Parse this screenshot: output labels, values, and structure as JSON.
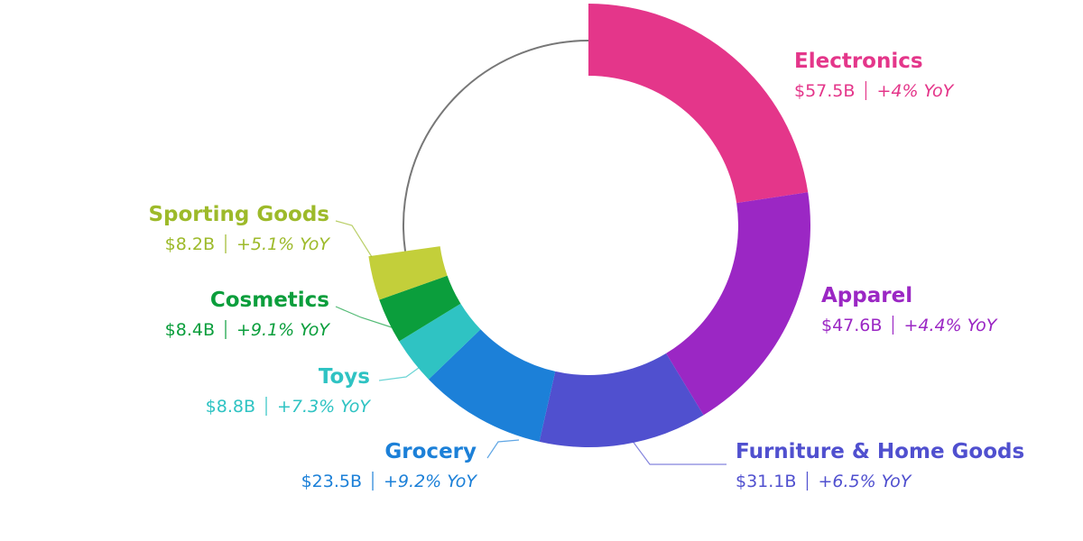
{
  "chart_data": {
    "type": "donut",
    "categories": [
      "Electronics",
      "Apparel",
      "Furniture & Home Goods",
      "Grocery",
      "Toys",
      "Cosmetics",
      "Sporting Goods"
    ],
    "values": [
      57.5,
      47.6,
      31.1,
      23.5,
      8.8,
      8.4,
      8.2
    ],
    "value_labels": [
      "$57.5B",
      "$47.6B",
      "$31.1B",
      "$23.5B",
      "$8.8B",
      "$8.4B",
      "$8.2B"
    ],
    "change_labels": [
      "+4% YoY",
      "+4.4% YoY",
      "+6.5% YoY",
      "+9.2% YoY",
      "+7.3% YoY",
      "+9.1% YoY",
      "+5.1% YoY"
    ],
    "colors": [
      "#e4368a",
      "#9b27c4",
      "#5050cf",
      "#1c80d8",
      "#2fc3c3",
      "#0b9e3c",
      "#c3cf3a"
    ]
  }
}
